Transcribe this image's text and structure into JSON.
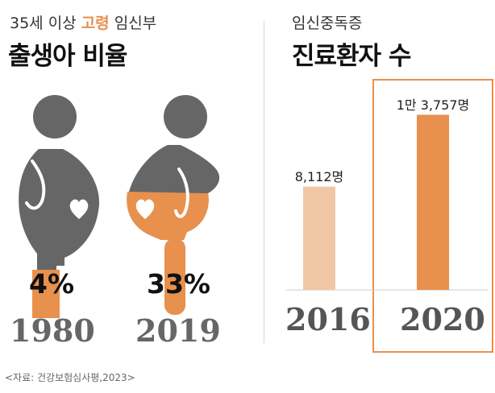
{
  "left_panel": {
    "subtitle_prefix": "35세 이상 ",
    "subtitle_highlight": "고령",
    "subtitle_suffix": " 임신부",
    "title": "출생아 비율"
  },
  "right_panel": {
    "subtitle": "임신중독증",
    "title": "진료환자 수"
  },
  "source": "<자료: 건강보험심사평,2023>",
  "colors": {
    "accent": "#E8904D",
    "accent_light": "#F0C7A5",
    "figure_gray": "#666666"
  },
  "chart_data": [
    {
      "type": "pictogram",
      "title": "35세 이상 고령 임신부 출생아 비율",
      "categories": [
        "1980",
        "2019"
      ],
      "values": [
        4,
        33
      ],
      "labels": [
        "4%",
        "33%"
      ],
      "unit": "%"
    },
    {
      "type": "bar",
      "title": "임신중독증 진료환자 수",
      "categories": [
        "2016",
        "2020"
      ],
      "values": [
        8112,
        13757
      ],
      "labels": [
        "8,112명",
        "1만 3,757명"
      ],
      "unit": "명",
      "ylim": [
        0,
        15500
      ],
      "highlight": "2020"
    }
  ]
}
